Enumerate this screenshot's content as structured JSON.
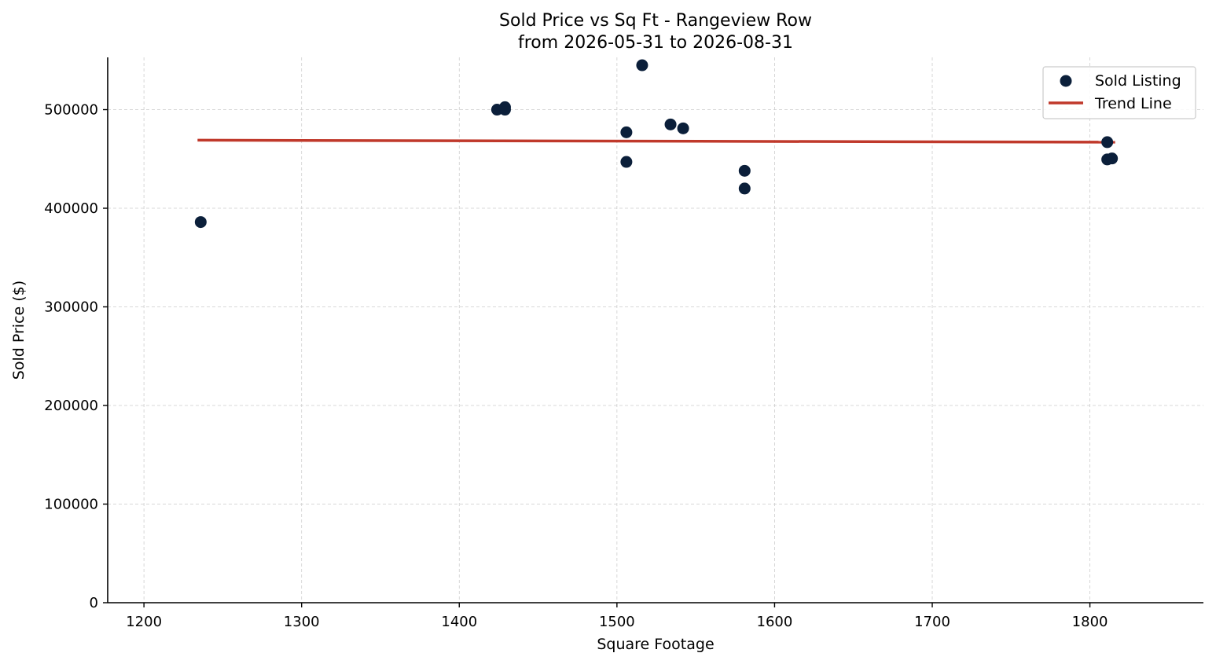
{
  "colors": {
    "point": "#0b1f3a",
    "trend": "#c0392b",
    "grid": "#cccccc",
    "background": "#ffffff"
  },
  "chart_data": {
    "type": "scatter",
    "title": "Sold Price vs Sq Ft - Rangeview Row",
    "subtitle": "from 2026-05-31 to 2026-08-31",
    "xlabel": "Square Footage",
    "ylabel": "Sold Price ($)",
    "xlim": [
      1177,
      1872
    ],
    "ylim": [
      0,
      553000
    ],
    "xticks": [
      1200,
      1300,
      1400,
      1500,
      1600,
      1700,
      1800
    ],
    "yticks": [
      0,
      100000,
      200000,
      300000,
      400000,
      500000
    ],
    "grid": true,
    "legend_position": "top-right",
    "series": [
      {
        "name": "Sold Listing",
        "marker": "circle",
        "color": "#0b1f3a",
        "points": [
          {
            "x": 1236,
            "y": 386000
          },
          {
            "x": 1424,
            "y": 500000
          },
          {
            "x": 1429,
            "y": 500000
          },
          {
            "x": 1429,
            "y": 502500
          },
          {
            "x": 1506,
            "y": 477000
          },
          {
            "x": 1506,
            "y": 447000
          },
          {
            "x": 1516,
            "y": 545000
          },
          {
            "x": 1534,
            "y": 485000
          },
          {
            "x": 1542,
            "y": 481000
          },
          {
            "x": 1581,
            "y": 438000
          },
          {
            "x": 1581,
            "y": 420000
          },
          {
            "x": 1811,
            "y": 467000
          },
          {
            "x": 1811,
            "y": 449500
          },
          {
            "x": 1814,
            "y": 450500
          }
        ]
      },
      {
        "name": "Trend Line",
        "type": "line",
        "color": "#c0392b",
        "points": [
          {
            "x": 1234,
            "y": 469000
          },
          {
            "x": 1816,
            "y": 467000
          }
        ]
      }
    ]
  }
}
